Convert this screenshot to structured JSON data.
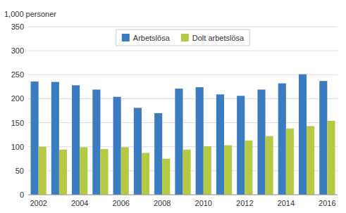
{
  "chart_data": {
    "type": "bar",
    "ylabel": "1,000 personer",
    "categories": [
      "2002",
      null,
      "2004",
      null,
      "2006",
      null,
      "2008",
      null,
      "2010",
      null,
      "2012",
      null,
      "2014",
      null,
      "2016"
    ],
    "series": [
      {
        "name": "Arbetslösa",
        "color": "#3b7bbf",
        "values": [
          236,
          235,
          228,
          219,
          204,
          181,
          170,
          221,
          224,
          209,
          206,
          219,
          232,
          251,
          237
        ]
      },
      {
        "name": "Dolt arbetslösa",
        "color": "#b5c942",
        "values": [
          100,
          94,
          99,
          95,
          99,
          87,
          75,
          94,
          101,
          103,
          113,
          122,
          138,
          143,
          154
        ]
      }
    ],
    "ylim": [
      0,
      350
    ],
    "yticks": [
      0,
      50,
      100,
      150,
      200,
      250,
      300,
      350
    ],
    "grid": true,
    "legend": "top"
  }
}
